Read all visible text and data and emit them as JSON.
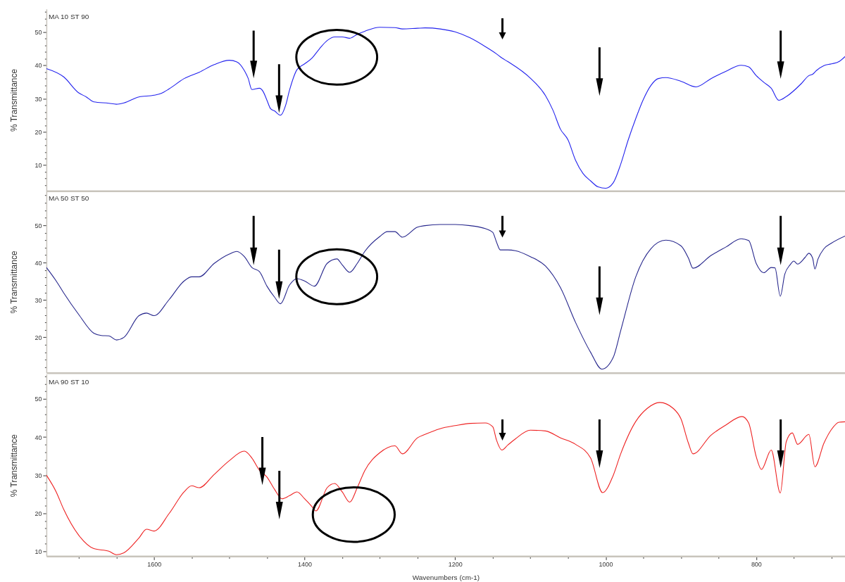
{
  "chart_data": [
    {
      "type": "line",
      "title": "MA 10 ST 90",
      "ylabel": "% Transmittance",
      "tick_labels": "y",
      "xlim": [
        1743,
        682
      ],
      "ylim": [
        2.3,
        56.9
      ],
      "yticks": [
        {
          "value": 4,
          "label": null
        },
        {
          "value": 6,
          "label": null
        },
        {
          "value": 8,
          "label": null
        },
        10,
        {
          "value": 12,
          "label": null
        },
        {
          "value": 14,
          "label": null
        },
        {
          "value": 16,
          "label": null
        },
        {
          "value": 18,
          "label": null
        },
        20,
        {
          "value": 22,
          "label": null
        },
        {
          "value": 24,
          "label": null
        },
        {
          "value": 26,
          "label": null
        },
        {
          "value": 28,
          "label": null
        },
        30,
        {
          "value": 32,
          "label": null
        },
        {
          "value": 34,
          "label": null
        },
        {
          "value": 36,
          "label": null
        },
        {
          "value": 38,
          "label": null
        },
        40,
        {
          "value": 42,
          "label": null
        },
        {
          "value": 44,
          "label": null
        },
        {
          "value": 46,
          "label": null
        },
        {
          "value": 48,
          "label": null
        },
        50,
        {
          "value": 52,
          "label": null
        },
        {
          "value": 54,
          "label": null
        },
        {
          "value": 56,
          "label": null
        }
      ],
      "x": [
        1743,
        1720,
        1700,
        1690,
        1680,
        1660,
        1650,
        1640,
        1620,
        1600,
        1590,
        1580,
        1560,
        1540,
        1520,
        1500,
        1490,
        1480,
        1475,
        1470,
        1460,
        1455,
        1450,
        1445,
        1440,
        1432,
        1425,
        1420,
        1410,
        1400,
        1390,
        1380,
        1370,
        1360,
        1350,
        1340,
        1330,
        1320,
        1300,
        1280,
        1270,
        1250,
        1240,
        1220,
        1200,
        1180,
        1160,
        1145,
        1138,
        1130,
        1100,
        1080,
        1070,
        1060,
        1050,
        1040,
        1030,
        1020,
        1010,
        1000,
        990,
        980,
        970,
        960,
        950,
        940,
        930,
        920,
        900,
        880,
        860,
        840,
        820,
        810,
        800,
        790,
        780,
        770,
        760,
        740,
        730,
        725,
        720,
        710,
        700,
        690,
        682
      ],
      "series": [
        {
          "color": "#2222ee",
          "values": [
            39.0,
            36.5,
            31.7,
            30.5,
            29.0,
            28.6,
            28.3,
            28.7,
            30.5,
            31.0,
            31.6,
            32.9,
            36.0,
            37.9,
            40.2,
            41.5,
            41.0,
            38.4,
            36.1,
            32.7,
            33.1,
            32.1,
            29.5,
            26.9,
            26.3,
            25.0,
            28.1,
            32.5,
            38.7,
            40.4,
            42.2,
            45.0,
            47.4,
            48.5,
            48.5,
            48.1,
            49.3,
            50.2,
            51.4,
            51.3,
            50.9,
            51.1,
            51.2,
            50.9,
            50.0,
            48.2,
            45.6,
            43.4,
            42.2,
            41.1,
            36.1,
            30.9,
            26.5,
            20.8,
            17.6,
            11.5,
            7.5,
            5.3,
            3.5,
            3.1,
            4.7,
            10.3,
            17.6,
            24.0,
            29.7,
            33.9,
            36.0,
            36.3,
            35.2,
            33.5,
            36.0,
            38.2,
            40.0,
            39.5,
            36.9,
            34.9,
            33.1,
            29.5,
            30.6,
            34.5,
            36.9,
            37.3,
            38.4,
            39.9,
            40.4,
            41.1,
            42.6
          ]
        }
      ]
    },
    {
      "type": "line",
      "title": "MA 50 ST 50",
      "ylabel": "% Transmittance",
      "tick_labels": "y",
      "xlim": [
        1743,
        682
      ],
      "ylim": [
        10.5,
        59.2
      ],
      "yticks": [
        {
          "value": 12,
          "label": null
        },
        {
          "value": 14,
          "label": null
        },
        {
          "value": 16,
          "label": null
        },
        {
          "value": 18,
          "label": null
        },
        20,
        {
          "value": 22,
          "label": null
        },
        {
          "value": 24,
          "label": null
        },
        {
          "value": 26,
          "label": null
        },
        {
          "value": 28,
          "label": null
        },
        30,
        {
          "value": 32,
          "label": null
        },
        {
          "value": 34,
          "label": null
        },
        {
          "value": 36,
          "label": null
        },
        {
          "value": 38,
          "label": null
        },
        40,
        {
          "value": 42,
          "label": null
        },
        {
          "value": 44,
          "label": null
        },
        {
          "value": 46,
          "label": null
        },
        {
          "value": 48,
          "label": null
        },
        50,
        {
          "value": 52,
          "label": null
        },
        {
          "value": 54,
          "label": null
        },
        {
          "value": 56,
          "label": null
        },
        {
          "value": 58,
          "label": null
        }
      ],
      "x": [
        1743,
        1730,
        1720,
        1700,
        1680,
        1670,
        1660,
        1650,
        1640,
        1620,
        1610,
        1600,
        1580,
        1560,
        1550,
        1540,
        1520,
        1500,
        1490,
        1480,
        1470,
        1460,
        1450,
        1440,
        1432,
        1420,
        1410,
        1400,
        1387,
        1370,
        1357,
        1350,
        1340,
        1330,
        1320,
        1300,
        1290,
        1280,
        1270,
        1250,
        1240,
        1220,
        1200,
        1180,
        1160,
        1150,
        1145,
        1140,
        1130,
        1120,
        1100,
        1080,
        1060,
        1040,
        1020,
        1005,
        990,
        980,
        960,
        940,
        920,
        900,
        890,
        884,
        860,
        840,
        820,
        810,
        800,
        790,
        780,
        775,
        768,
        762,
        755,
        750,
        745,
        735,
        730,
        725,
        722,
        718,
        710,
        700,
        682
      ],
      "series": [
        {
          "color": "#26268c",
          "values": [
            38.7,
            35.1,
            31.9,
            26.1,
            21.1,
            20.5,
            20.4,
            19.3,
            20.0,
            25.8,
            26.5,
            25.8,
            30.1,
            35.1,
            36.2,
            36.2,
            39.8,
            42.3,
            43.0,
            41.6,
            38.7,
            37.6,
            33.7,
            30.8,
            29.0,
            34.0,
            35.7,
            35.1,
            33.7,
            39.8,
            41.0,
            39.4,
            37.4,
            39.8,
            43.0,
            47.0,
            48.3,
            48.3,
            46.8,
            49.5,
            49.9,
            50.2,
            50.2,
            49.9,
            49.1,
            48.1,
            45.5,
            43.4,
            43.4,
            43.2,
            41.6,
            39.1,
            33.3,
            24.0,
            16.0,
            11.5,
            14.6,
            21.8,
            36.2,
            43.7,
            46.0,
            44.5,
            41.2,
            38.5,
            41.9,
            44.2,
            46.4,
            45.9,
            39.8,
            37.3,
            38.7,
            38.6,
            31.0,
            36.9,
            39.4,
            40.4,
            39.6,
            41.4,
            42.5,
            41.2,
            38.3,
            40.9,
            43.7,
            45.2,
            47.1
          ]
        }
      ]
    },
    {
      "type": "line",
      "title": "MA 90 ST 10",
      "ylabel": "% Transmittance",
      "xlabel": "Wavenumbers (cm-1)",
      "xlim": [
        1743,
        682
      ],
      "ylim": [
        8.7,
        56.5
      ],
      "xticks": [
        {
          "value": 1700,
          "label": null
        },
        {
          "value": 1650,
          "label": null
        },
        1600,
        {
          "value": 1550,
          "label": null
        },
        {
          "value": 1500,
          "label": null
        },
        {
          "value": 1450,
          "label": null
        },
        1400,
        {
          "value": 1350,
          "label": null
        },
        {
          "value": 1300,
          "label": null
        },
        {
          "value": 1250,
          "label": null
        },
        1200,
        {
          "value": 1150,
          "label": null
        },
        {
          "value": 1100,
          "label": null
        },
        {
          "value": 1050,
          "label": null
        },
        1000,
        {
          "value": 950,
          "label": null
        },
        {
          "value": 900,
          "label": null
        },
        {
          "value": 850,
          "label": null
        },
        800,
        {
          "value": 750,
          "label": null
        },
        {
          "value": 700,
          "label": null
        }
      ],
      "yticks": [
        10,
        {
          "value": 12,
          "label": null
        },
        {
          "value": 14,
          "label": null
        },
        {
          "value": 16,
          "label": null
        },
        {
          "value": 18,
          "label": null
        },
        20,
        {
          "value": 22,
          "label": null
        },
        {
          "value": 24,
          "label": null
        },
        {
          "value": 26,
          "label": null
        },
        {
          "value": 28,
          "label": null
        },
        30,
        {
          "value": 32,
          "label": null
        },
        {
          "value": 34,
          "label": null
        },
        {
          "value": 36,
          "label": null
        },
        {
          "value": 38,
          "label": null
        },
        40,
        {
          "value": 42,
          "label": null
        },
        {
          "value": 44,
          "label": null
        },
        {
          "value": 46,
          "label": null
        },
        {
          "value": 48,
          "label": null
        },
        50,
        {
          "value": 52,
          "label": null
        },
        {
          "value": 54,
          "label": null
        },
        {
          "value": 56,
          "label": null
        }
      ],
      "x": [
        1743,
        1730,
        1720,
        1700,
        1680,
        1660,
        1650,
        1640,
        1620,
        1610,
        1600,
        1580,
        1560,
        1550,
        1540,
        1520,
        1500,
        1480,
        1470,
        1460,
        1450,
        1440,
        1430,
        1420,
        1410,
        1400,
        1390,
        1385,
        1370,
        1360,
        1350,
        1340,
        1330,
        1320,
        1300,
        1280,
        1270,
        1250,
        1240,
        1220,
        1200,
        1180,
        1160,
        1150,
        1145,
        1138,
        1130,
        1120,
        1100,
        1080,
        1060,
        1040,
        1020,
        1004,
        990,
        980,
        960,
        945,
        928,
        910,
        900,
        890,
        884,
        860,
        840,
        819,
        810,
        800,
        793,
        780,
        768,
        760,
        752,
        745,
        730,
        722,
        710,
        700,
        690,
        682
      ],
      "series": [
        {
          "color": "#ee2222",
          "values": [
            30.0,
            25.6,
            21.0,
            14.2,
            10.7,
            10.0,
            9.1,
            9.6,
            13.5,
            15.8,
            15.3,
            19.9,
            25.6,
            27.2,
            26.7,
            30.2,
            33.8,
            36.3,
            34.5,
            31.3,
            29.5,
            26.3,
            23.8,
            24.6,
            25.6,
            23.8,
            21.7,
            20.6,
            26.7,
            27.8,
            25.6,
            22.9,
            26.7,
            31.2,
            35.9,
            37.7,
            35.6,
            39.8,
            40.7,
            42.2,
            43.0,
            43.6,
            43.7,
            42.7,
            39.2,
            36.6,
            37.9,
            39.5,
            41.8,
            41.6,
            39.8,
            38.1,
            34.5,
            25.4,
            29.9,
            35.6,
            44.1,
            47.5,
            49.1,
            47.5,
            44.8,
            38.4,
            35.6,
            40.5,
            43.2,
            45.4,
            43.7,
            34.9,
            31.5,
            36.6,
            25.3,
            38.8,
            41.1,
            38.1,
            40.7,
            32.2,
            38.4,
            42.0,
            43.9,
            44.0
          ]
        }
      ]
    }
  ]
}
